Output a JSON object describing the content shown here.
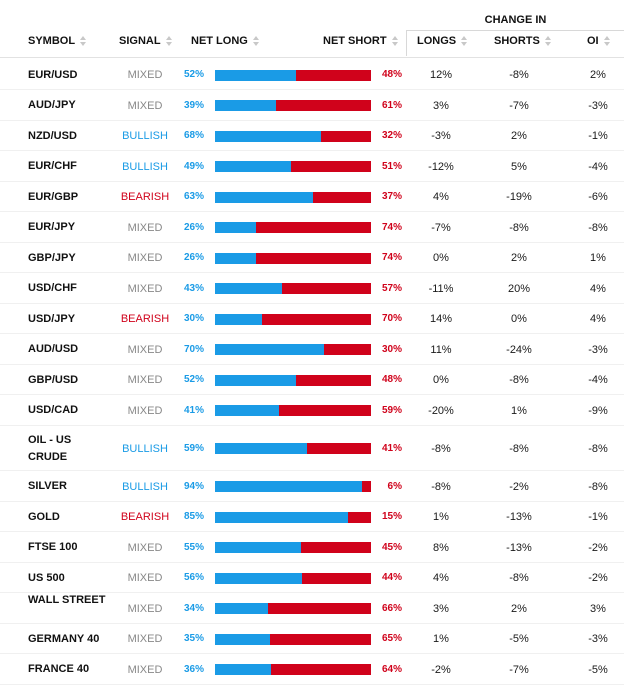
{
  "colors": {
    "long": "#1a9be6",
    "short": "#d0021b",
    "mixed": "#888888",
    "bullish": "#1a9be6",
    "bearish": "#d0021b"
  },
  "headers": {
    "symbol": "SYMBOL",
    "signal": "SIGNAL",
    "net_long": "NET LONG",
    "net_short": "NET SHORT",
    "change_in": "CHANGE IN",
    "longs": "LONGS",
    "shorts": "SHORTS",
    "oi": "OI"
  },
  "rows": [
    {
      "symbol": "EUR/USD",
      "signal": "MIXED",
      "net_long": "52%",
      "long_pct": 52,
      "net_short": "48%",
      "longs": "12%",
      "shorts": "-8%",
      "oi": "2%"
    },
    {
      "symbol": "AUD/JPY",
      "signal": "MIXED",
      "net_long": "39%",
      "long_pct": 39,
      "net_short": "61%",
      "longs": "3%",
      "shorts": "-7%",
      "oi": "-3%"
    },
    {
      "symbol": "NZD/USD",
      "signal": "BULLISH",
      "net_long": "68%",
      "long_pct": 68,
      "net_short": "32%",
      "longs": "-3%",
      "shorts": "2%",
      "oi": "-1%"
    },
    {
      "symbol": "EUR/CHF",
      "signal": "BULLISH",
      "net_long": "49%",
      "long_pct": 49,
      "net_short": "51%",
      "longs": "-12%",
      "shorts": "5%",
      "oi": "-4%"
    },
    {
      "symbol": "EUR/GBP",
      "signal": "BEARISH",
      "net_long": "63%",
      "long_pct": 63,
      "net_short": "37%",
      "longs": "4%",
      "shorts": "-19%",
      "oi": "-6%"
    },
    {
      "symbol": "EUR/JPY",
      "signal": "MIXED",
      "net_long": "26%",
      "long_pct": 26,
      "net_short": "74%",
      "longs": "-7%",
      "shorts": "-8%",
      "oi": "-8%"
    },
    {
      "symbol": "GBP/JPY",
      "signal": "MIXED",
      "net_long": "26%",
      "long_pct": 26,
      "net_short": "74%",
      "longs": "0%",
      "shorts": "2%",
      "oi": "1%"
    },
    {
      "symbol": "USD/CHF",
      "signal": "MIXED",
      "net_long": "43%",
      "long_pct": 43,
      "net_short": "57%",
      "longs": "-11%",
      "shorts": "20%",
      "oi": "4%"
    },
    {
      "symbol": "USD/JPY",
      "signal": "BEARISH",
      "net_long": "30%",
      "long_pct": 30,
      "net_short": "70%",
      "longs": "14%",
      "shorts": "0%",
      "oi": "4%"
    },
    {
      "symbol": "AUD/USD",
      "signal": "MIXED",
      "net_long": "70%",
      "long_pct": 70,
      "net_short": "30%",
      "longs": "11%",
      "shorts": "-24%",
      "oi": "-3%"
    },
    {
      "symbol": "GBP/USD",
      "signal": "MIXED",
      "net_long": "52%",
      "long_pct": 52,
      "net_short": "48%",
      "longs": "0%",
      "shorts": "-8%",
      "oi": "-4%"
    },
    {
      "symbol": "USD/CAD",
      "signal": "MIXED",
      "net_long": "41%",
      "long_pct": 41,
      "net_short": "59%",
      "longs": "-20%",
      "shorts": "1%",
      "oi": "-9%"
    },
    {
      "symbol": "OIL - US CRUDE",
      "signal": "BULLISH",
      "net_long": "59%",
      "long_pct": 59,
      "net_short": "41%",
      "longs": "-8%",
      "shorts": "-8%",
      "oi": "-8%"
    },
    {
      "symbol": "SILVER",
      "signal": "BULLISH",
      "net_long": "94%",
      "long_pct": 94,
      "net_short": "6%",
      "longs": "-8%",
      "shorts": "-2%",
      "oi": "-8%"
    },
    {
      "symbol": "GOLD",
      "signal": "BEARISH",
      "net_long": "85%",
      "long_pct": 85,
      "net_short": "15%",
      "longs": "1%",
      "shorts": "-13%",
      "oi": "-1%"
    },
    {
      "symbol": "FTSE 100",
      "signal": "MIXED",
      "net_long": "55%",
      "long_pct": 55,
      "net_short": "45%",
      "longs": "8%",
      "shorts": "-13%",
      "oi": "-2%"
    },
    {
      "symbol": "US 500",
      "signal": "MIXED",
      "net_long": "56%",
      "long_pct": 56,
      "net_short": "44%",
      "longs": "4%",
      "shorts": "-8%",
      "oi": "-2%"
    },
    {
      "symbol": "WALL STREET",
      "signal": "MIXED",
      "net_long": "34%",
      "long_pct": 34,
      "net_short": "66%",
      "longs": "3%",
      "shorts": "2%",
      "oi": "3%"
    },
    {
      "symbol": "GERMANY 40",
      "signal": "MIXED",
      "net_long": "35%",
      "long_pct": 35,
      "net_short": "65%",
      "longs": "1%",
      "shorts": "-5%",
      "oi": "-3%"
    },
    {
      "symbol": "FRANCE 40",
      "signal": "MIXED",
      "net_long": "36%",
      "long_pct": 36,
      "net_short": "64%",
      "longs": "-2%",
      "shorts": "-7%",
      "oi": "-5%"
    }
  ]
}
